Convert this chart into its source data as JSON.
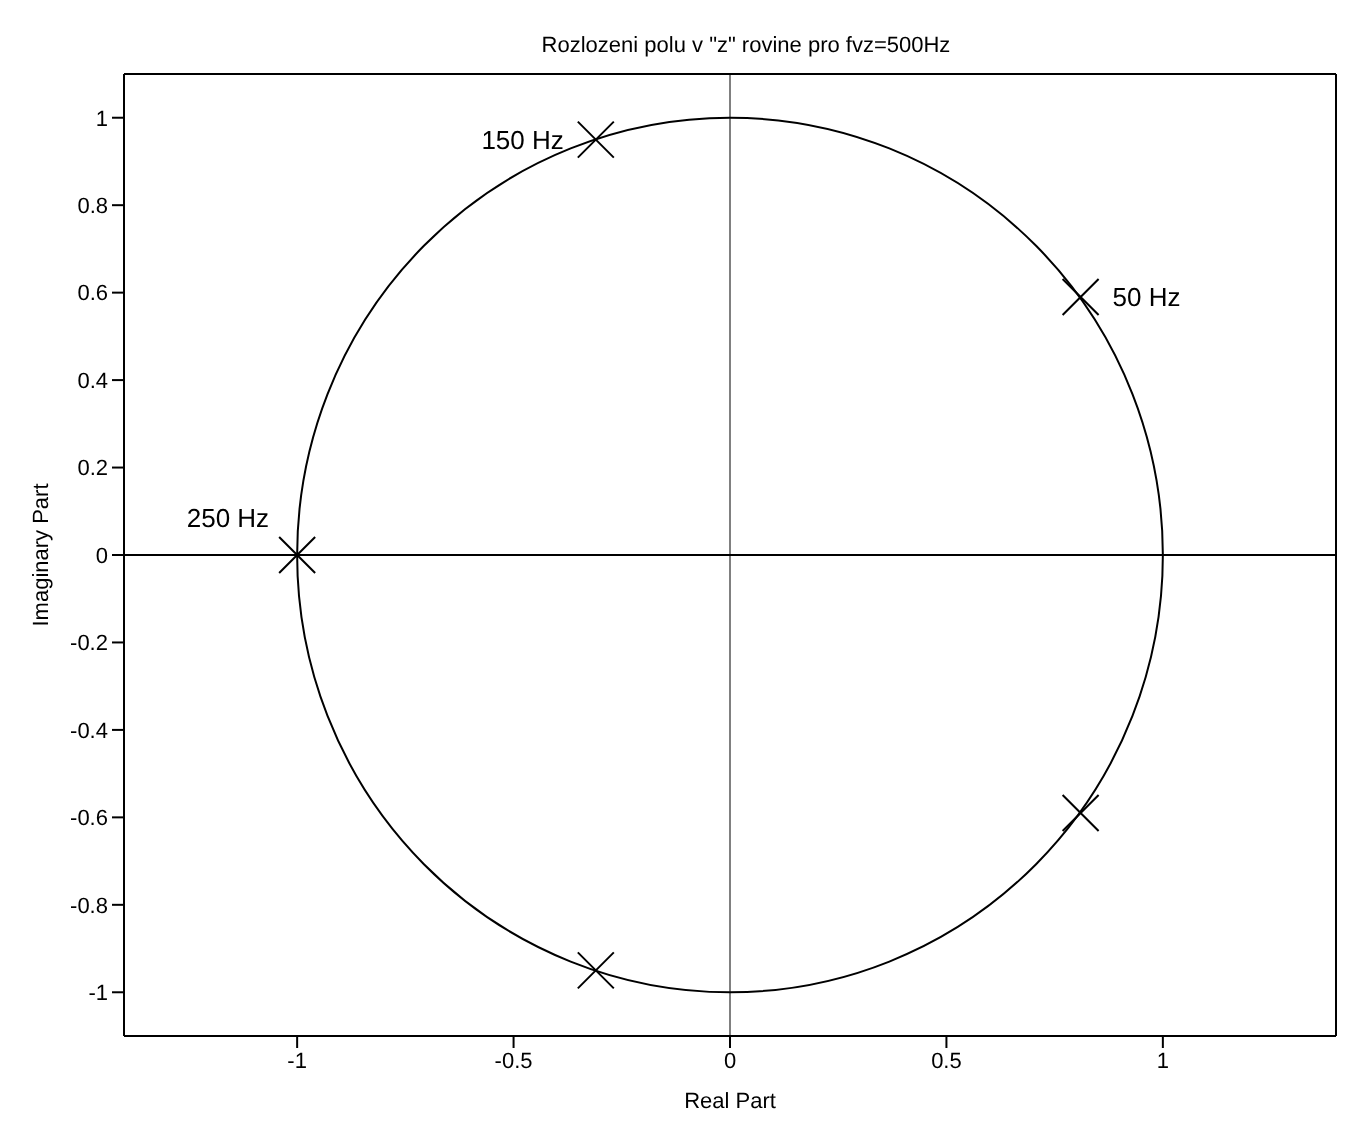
{
  "chart_data": {
    "type": "scatter",
    "title": "Rozlozeni polu v \"z\" rovine pro fvz=500Hz",
    "xlabel": "Real Part",
    "ylabel": "Imaginary Part",
    "xlim": [
      -1.4,
      1.4
    ],
    "xticks": [
      -1,
      -0.5,
      0,
      0.5,
      1
    ],
    "ylim": [
      -1.1,
      1.1
    ],
    "yticks": [
      -1,
      -0.8,
      -0.6,
      -0.4,
      -0.2,
      0,
      0.2,
      0.4,
      0.6,
      0.8,
      1
    ],
    "grid": false,
    "legend": false,
    "series": [
      {
        "type": "scatter",
        "color": "#000000",
        "marker": "cross",
        "x": [
          0.81,
          -0.31,
          -1,
          -0.31,
          0.81
        ],
        "values": [
          0.59,
          0.95,
          0,
          -0.95,
          -0.59
        ]
      }
    ],
    "ref_lines": [
      {
        "axis": "x",
        "value": 0,
        "color": "#808080"
      },
      {
        "axis": "y",
        "value": 0,
        "color": "#000000"
      }
    ],
    "annotations": [
      {
        "text": "50 Hz",
        "x": 0.81,
        "y": 0.59
      },
      {
        "text": "150 Hz",
        "x": -0.31,
        "y": 0.95
      },
      {
        "text": "250 Hz",
        "x": -1,
        "y": 0
      }
    ]
  }
}
